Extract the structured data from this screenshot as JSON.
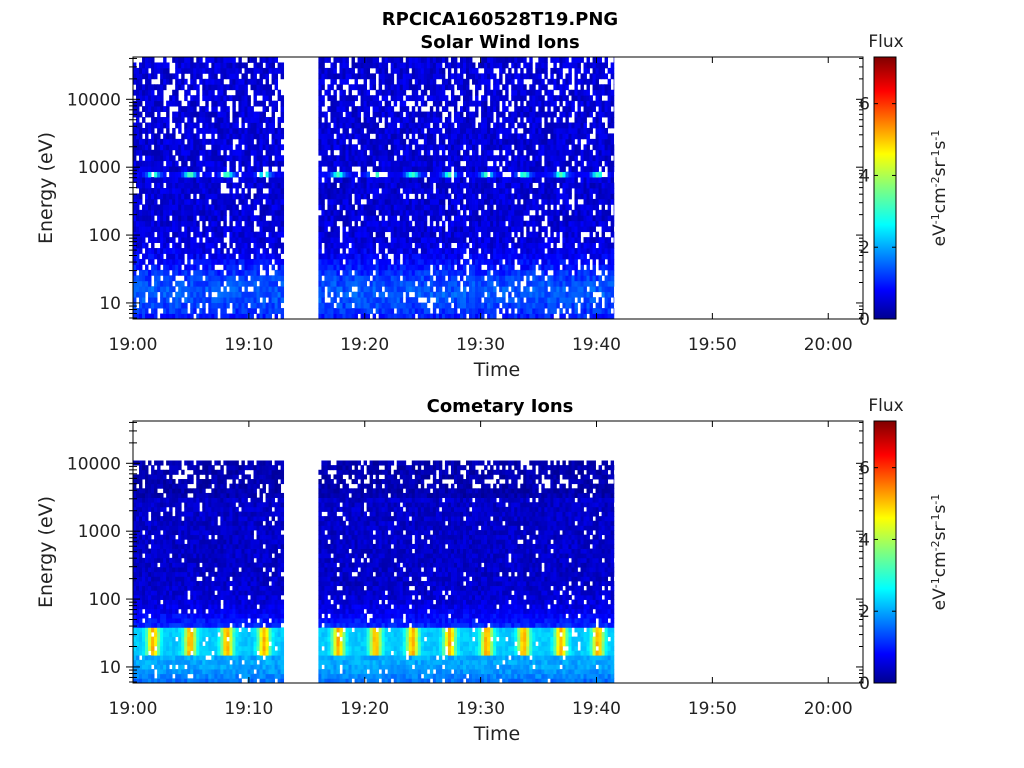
{
  "figure_title": "RPCICA160528T19.PNG",
  "chart_data": [
    {
      "type": "heatmap",
      "title": "Solar Wind Ions",
      "xlabel": "Time",
      "ylabel": "Energy (eV)",
      "y_scale": "log",
      "x_range": [
        "19:00",
        "20:03"
      ],
      "y_range": [
        5.8,
        42000
      ],
      "x_ticks": [
        "19:00",
        "19:10",
        "19:20",
        "19:30",
        "19:40",
        "19:50",
        "20:00"
      ],
      "y_ticks": [
        {
          "value": 10,
          "label": "10"
        },
        {
          "value": 100,
          "label": "100"
        },
        {
          "value": 1000,
          "label": "1000"
        },
        {
          "value": 10000,
          "label": "10000"
        }
      ],
      "data_intervals": [
        [
          "19:00",
          "19:13"
        ],
        [
          "19:16",
          "19:41.5"
        ]
      ],
      "data_energy_max": 42000,
      "colorbar": {
        "title": "Flux",
        "label": "eV-1 cm-2 sr-1 s-1",
        "colormap": "jet",
        "range": [
          0,
          7.3
        ],
        "ticks": [
          "0",
          "2",
          "4",
          "6"
        ]
      },
      "features": [
        {
          "energy": 800,
          "flux": 2.8,
          "note": "periodic cyan peaks near 1000 eV, ~3 min period"
        },
        {
          "energy": 40,
          "flux": 2.0,
          "note": "cyan band at low energy"
        }
      ]
    },
    {
      "type": "heatmap",
      "title": "Cometary Ions",
      "xlabel": "Time",
      "ylabel": "Energy (eV)",
      "y_scale": "log",
      "x_range": [
        "19:00",
        "20:03"
      ],
      "y_range": [
        5.8,
        42000
      ],
      "x_ticks": [
        "19:00",
        "19:10",
        "19:20",
        "19:30",
        "19:40",
        "19:50",
        "20:00"
      ],
      "y_ticks": [
        {
          "value": 10,
          "label": "10"
        },
        {
          "value": 100,
          "label": "100"
        },
        {
          "value": 1000,
          "label": "1000"
        },
        {
          "value": 10000,
          "label": "10000"
        }
      ],
      "data_intervals": [
        [
          "19:00",
          "19:13"
        ],
        [
          "19:16",
          "19:41.5"
        ]
      ],
      "data_energy_max": 11000,
      "colorbar": {
        "title": "Flux",
        "label": "eV-1 cm-2 sr-1 s-1",
        "colormap": "jet",
        "range": [
          0,
          7.3
        ],
        "ticks": [
          "0",
          "2",
          "4",
          "6"
        ]
      },
      "features": [
        {
          "energy": 25,
          "flux": 4.8,
          "note": "periodic yellow peaks near 20-30 eV, ~3 min period"
        }
      ]
    }
  ]
}
